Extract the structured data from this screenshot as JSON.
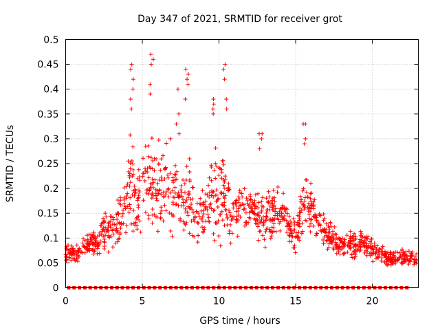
{
  "chart_data": {
    "type": "scatter",
    "title": "Day 347 of 2021, SRMTID for receiver grot",
    "xlabel": "GPS time / hours",
    "ylabel": "SRMTID / TECUs",
    "xlim": [
      0,
      23
    ],
    "ylim": [
      0,
      0.5
    ],
    "x_ticks": [
      0,
      5,
      10,
      15,
      20
    ],
    "x_tick_labels": [
      "0",
      "5",
      "10",
      "15",
      "20"
    ],
    "y_ticks": [
      0,
      0.05,
      0.1,
      0.15,
      0.2,
      0.25,
      0.3,
      0.35,
      0.4,
      0.45,
      0.5
    ],
    "y_tick_labels": [
      "0",
      "0.05",
      "0.1",
      "0.15",
      "0.2",
      "0.25",
      "0.3",
      "0.35",
      "0.4",
      "0.45",
      "0.5"
    ],
    "grid": true,
    "marker": "+",
    "color": "#ff0000",
    "envelope": {
      "hours": [
        0,
        0.5,
        1,
        1.5,
        2,
        2.5,
        3,
        3.5,
        4,
        4.3,
        4.6,
        5,
        5.5,
        6,
        6.5,
        7,
        7.5,
        8,
        8.5,
        9,
        9.5,
        10,
        10.5,
        11,
        11.5,
        12,
        12.5,
        13,
        13.5,
        14,
        14.5,
        15,
        15.5,
        16,
        16.5,
        17,
        17.5,
        18,
        18.5,
        19,
        19.5,
        20,
        20.5,
        21,
        21.5,
        22,
        22.5,
        23
      ],
      "center": [
        0.07,
        0.07,
        0.07,
        0.09,
        0.09,
        0.12,
        0.11,
        0.14,
        0.17,
        0.24,
        0.14,
        0.22,
        0.2,
        0.2,
        0.21,
        0.2,
        0.17,
        0.18,
        0.14,
        0.14,
        0.18,
        0.19,
        0.17,
        0.16,
        0.15,
        0.16,
        0.15,
        0.14,
        0.15,
        0.15,
        0.13,
        0.1,
        0.17,
        0.16,
        0.13,
        0.11,
        0.1,
        0.08,
        0.09,
        0.08,
        0.09,
        0.08,
        0.07,
        0.06,
        0.06,
        0.06,
        0.06,
        0.06
      ],
      "spread": [
        0.02,
        0.02,
        0.02,
        0.03,
        0.03,
        0.05,
        0.05,
        0.06,
        0.08,
        0.14,
        0.06,
        0.1,
        0.14,
        0.11,
        0.1,
        0.11,
        0.09,
        0.11,
        0.06,
        0.08,
        0.09,
        0.14,
        0.1,
        0.06,
        0.06,
        0.06,
        0.07,
        0.08,
        0.06,
        0.06,
        0.05,
        0.04,
        0.09,
        0.06,
        0.04,
        0.04,
        0.04,
        0.03,
        0.03,
        0.03,
        0.03,
        0.03,
        0.02,
        0.02,
        0.02,
        0.02,
        0.02,
        0.02
      ]
    },
    "peaks": [
      {
        "x": 4.3,
        "values": [
          0.45,
          0.44,
          0.42,
          0.4,
          0.38,
          0.36
        ]
      },
      {
        "x": 5.6,
        "values": [
          0.47,
          0.46,
          0.45,
          0.41,
          0.39
        ]
      },
      {
        "x": 7.3,
        "values": [
          0.4,
          0.35,
          0.33,
          0.31
        ]
      },
      {
        "x": 7.9,
        "values": [
          0.44,
          0.43,
          0.42,
          0.41,
          0.38
        ]
      },
      {
        "x": 9.6,
        "values": [
          0.38,
          0.37,
          0.36,
          0.35
        ]
      },
      {
        "x": 10.4,
        "values": [
          0.45,
          0.44,
          0.42,
          0.38,
          0.36
        ]
      },
      {
        "x": 12.7,
        "values": [
          0.31,
          0.31,
          0.3,
          0.28
        ]
      },
      {
        "x": 15.6,
        "values": [
          0.33,
          0.33,
          0.3,
          0.29
        ]
      }
    ],
    "zero_points": {
      "start": 0.2,
      "end": 22.5,
      "step": 0.35,
      "value": 0.0
    }
  }
}
